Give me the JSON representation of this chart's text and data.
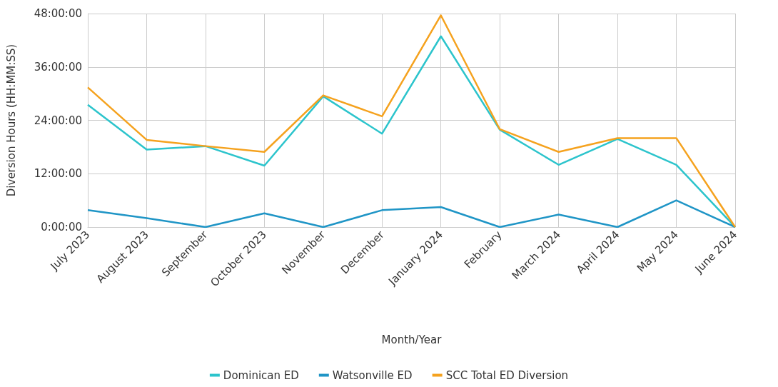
{
  "chart_data": {
    "type": "line",
    "xlabel": "Month/Year",
    "ylabel": "Diversion Hours (HH:MM:SS)",
    "categories": [
      "July 2023",
      "August 2023",
      "September",
      "October 2023",
      "November",
      "December",
      "January 2024",
      "February",
      "March 2024",
      "April 2024",
      "May 2024",
      "June 2024"
    ],
    "series": [
      {
        "name": "Dominican ED",
        "color": "#2cc4cc",
        "values": [
          27.5,
          17.4,
          18.2,
          13.8,
          29.4,
          21.0,
          42.9,
          21.9,
          14.0,
          19.8,
          14.0,
          0
        ]
      },
      {
        "name": "Watsonville ED",
        "color": "#1f95c6",
        "values": [
          3.8,
          2.0,
          0,
          3.1,
          0,
          3.8,
          4.5,
          0,
          2.8,
          0,
          6.0,
          0
        ]
      },
      {
        "name": "SCC Total ED Diversion",
        "color": "#f5a21e",
        "values": [
          31.4,
          19.6,
          18.2,
          16.9,
          29.6,
          24.9,
          47.6,
          22.0,
          16.9,
          20.0,
          20.0,
          0
        ]
      }
    ],
    "ylim": [
      0,
      48
    ],
    "yticks": [
      {
        "value": 0,
        "label": "0:00:00"
      },
      {
        "value": 12,
        "label": "12:00:00"
      },
      {
        "value": 24,
        "label": "24:00:00"
      },
      {
        "value": 36,
        "label": "36:00:00"
      },
      {
        "value": 48,
        "label": "48:00:00"
      }
    ],
    "grid": true,
    "legend": "bottom",
    "marker": "none",
    "line_style": "solid"
  }
}
